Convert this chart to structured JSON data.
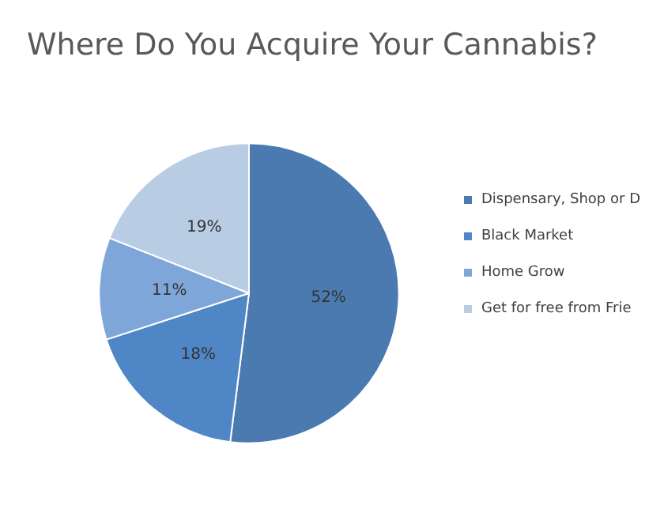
{
  "chart_data": {
    "type": "pie",
    "title": "Where Do You Acquire Your Cannabis?",
    "categories": [
      "Dispensary, Shop or D",
      "Black Market",
      "Home Grow",
      "Get for free from Frie"
    ],
    "values": [
      52,
      18,
      11,
      19
    ],
    "value_labels": [
      "52%",
      "18%",
      "11%",
      "19%"
    ],
    "colors": [
      "#4a7ab0",
      "#4f86c6",
      "#7ea6d8",
      "#b8cce4"
    ],
    "legend": "right"
  }
}
